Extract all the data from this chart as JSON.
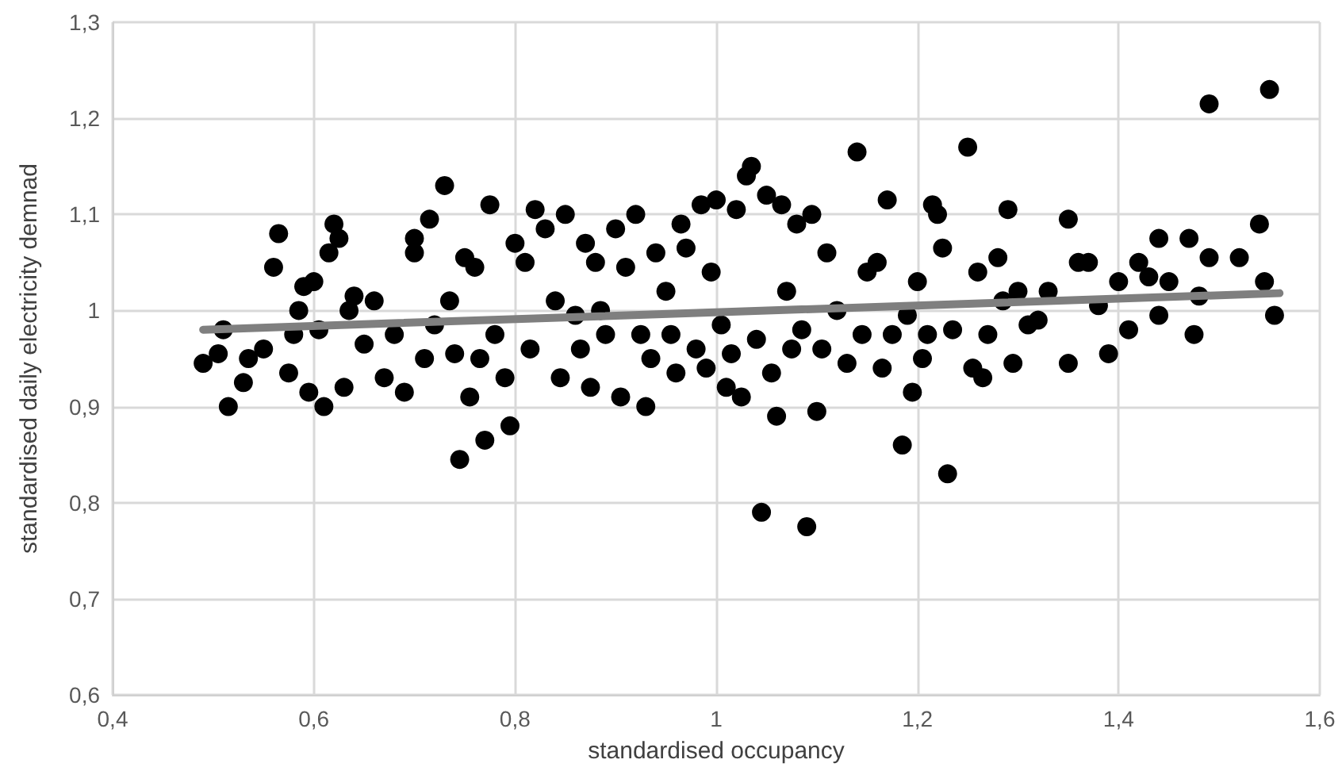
{
  "chart_data": {
    "type": "scatter",
    "xlabel": "standardised occupancy",
    "ylabel": "standardised daily electricity demnad",
    "xlim": [
      0.4,
      1.6
    ],
    "ylim": [
      0.6,
      1.3
    ],
    "xticks": [
      {
        "value": 0.4,
        "label": "0,4"
      },
      {
        "value": 0.6,
        "label": "0,6"
      },
      {
        "value": 0.8,
        "label": "0,8"
      },
      {
        "value": 1,
        "label": "1"
      },
      {
        "value": 1.2,
        "label": "1,2"
      },
      {
        "value": 1.4,
        "label": "1,4"
      },
      {
        "value": 1.6,
        "label": "1,6"
      }
    ],
    "yticks": [
      {
        "value": 0.6,
        "label": "0,6"
      },
      {
        "value": 0.7,
        "label": "0,7"
      },
      {
        "value": 0.8,
        "label": "0,8"
      },
      {
        "value": 0.9,
        "label": "0,9"
      },
      {
        "value": 1,
        "label": "1"
      },
      {
        "value": 1.1,
        "label": "1,1"
      },
      {
        "value": 1.2,
        "label": "1,2"
      },
      {
        "value": 1.3,
        "label": "1,3"
      }
    ],
    "grid": true,
    "marker": "circle",
    "series": [
      {
        "color": "#000000",
        "x": [
          0.49,
          0.505,
          0.51,
          0.515,
          0.53,
          0.535,
          0.55,
          0.56,
          0.565,
          0.575,
          0.58,
          0.585,
          0.59,
          0.595,
          0.6,
          0.605,
          0.61,
          0.615,
          0.62,
          0.625,
          0.63,
          0.635,
          0.64,
          0.65,
          0.66,
          0.67,
          0.68,
          0.69,
          0.7,
          0.7,
          0.71,
          0.715,
          0.72,
          0.73,
          0.735,
          0.74,
          0.745,
          0.75,
          0.755,
          0.76,
          0.765,
          0.77,
          0.775,
          0.78,
          0.79,
          0.795,
          0.8,
          0.81,
          0.815,
          0.82,
          0.83,
          0.84,
          0.845,
          0.85,
          0.86,
          0.865,
          0.87,
          0.875,
          0.88,
          0.885,
          0.89,
          0.9,
          0.905,
          0.91,
          0.92,
          0.925,
          0.93,
          0.935,
          0.94,
          0.95,
          0.955,
          0.96,
          0.965,
          0.97,
          0.98,
          0.985,
          0.99,
          0.995,
          1.0,
          1.005,
          1.01,
          1.015,
          1.02,
          1.025,
          1.03,
          1.035,
          1.04,
          1.045,
          1.05,
          1.055,
          1.06,
          1.065,
          1.07,
          1.075,
          1.08,
          1.085,
          1.09,
          1.095,
          1.1,
          1.105,
          1.11,
          1.12,
          1.13,
          1.14,
          1.145,
          1.15,
          1.16,
          1.165,
          1.17,
          1.175,
          1.185,
          1.19,
          1.195,
          1.2,
          1.205,
          1.21,
          1.215,
          1.22,
          1.225,
          1.23,
          1.235,
          1.25,
          1.255,
          1.26,
          1.265,
          1.27,
          1.28,
          1.285,
          1.29,
          1.295,
          1.3,
          1.31,
          1.32,
          1.33,
          1.35,
          1.35,
          1.36,
          1.37,
          1.38,
          1.39,
          1.4,
          1.41,
          1.42,
          1.43,
          1.44,
          1.44,
          1.45,
          1.47,
          1.475,
          1.48,
          1.49,
          1.49,
          1.52,
          1.54,
          1.545,
          1.55,
          1.555
        ],
        "values": [
          0.945,
          0.955,
          0.98,
          0.9,
          0.925,
          0.95,
          0.96,
          1.045,
          1.08,
          0.935,
          0.975,
          1.0,
          1.025,
          0.915,
          1.03,
          0.98,
          0.9,
          1.06,
          1.09,
          1.075,
          0.92,
          1.0,
          1.015,
          0.965,
          1.01,
          0.93,
          0.975,
          0.915,
          1.075,
          1.06,
          0.95,
          1.095,
          0.985,
          1.13,
          1.01,
          0.955,
          0.845,
          1.055,
          0.91,
          1.045,
          0.95,
          0.865,
          1.11,
          0.975,
          0.93,
          0.88,
          1.07,
          1.05,
          0.96,
          1.105,
          1.085,
          1.01,
          0.93,
          1.1,
          0.995,
          0.96,
          1.07,
          0.92,
          1.05,
          1.0,
          0.975,
          1.085,
          0.91,
          1.045,
          1.1,
          0.975,
          0.9,
          0.95,
          1.06,
          1.02,
          0.975,
          0.935,
          1.09,
          1.065,
          0.96,
          1.11,
          0.94,
          1.04,
          1.115,
          0.985,
          0.92,
          0.955,
          1.105,
          0.91,
          1.14,
          1.15,
          0.97,
          0.79,
          1.12,
          0.935,
          0.89,
          1.11,
          1.02,
          0.96,
          1.09,
          0.98,
          0.775,
          1.1,
          0.895,
          0.96,
          1.06,
          1.0,
          0.945,
          1.165,
          0.975,
          1.04,
          1.05,
          0.94,
          1.115,
          0.975,
          0.86,
          0.995,
          0.915,
          1.03,
          0.95,
          0.975,
          1.11,
          1.1,
          1.065,
          0.83,
          0.98,
          1.17,
          0.94,
          1.04,
          0.93,
          0.975,
          1.055,
          1.01,
          1.105,
          0.945,
          1.02,
          0.985,
          0.99,
          1.02,
          1.095,
          0.945,
          1.05,
          1.05,
          1.005,
          0.955,
          1.03,
          0.98,
          1.05,
          1.035,
          1.075,
          0.995,
          1.03,
          1.075,
          0.975,
          1.015,
          1.215,
          1.055,
          1.055,
          1.09,
          1.03,
          1.23,
          0.995
        ]
      },
      {
        "type": "line",
        "color": "#7f7f7f",
        "marker": "none",
        "line_style": "solid",
        "x": [
          0.49,
          1.56
        ],
        "values": [
          0.98,
          1.018
        ]
      }
    ]
  }
}
